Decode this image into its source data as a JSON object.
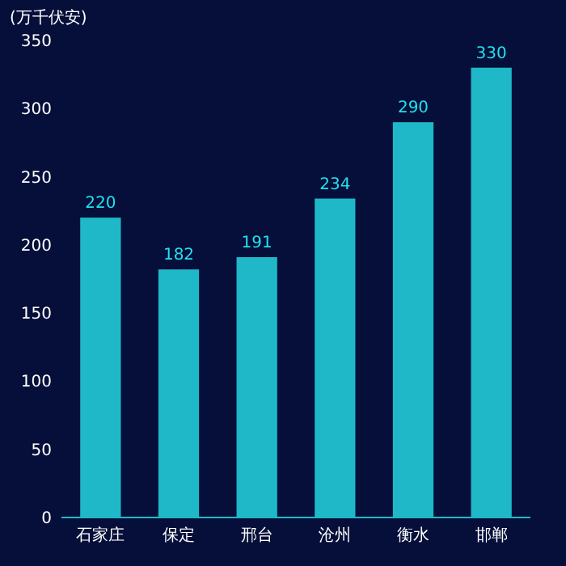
{
  "chart_data": {
    "type": "bar",
    "ylabel": "(万千伏安)",
    "categories": [
      "石家庄",
      "保定",
      "邢台",
      "沧州",
      "衡水",
      "邯郸"
    ],
    "values": [
      220,
      182,
      191,
      234,
      290,
      330
    ],
    "color": "#1fb8c8",
    "ylim": [
      0,
      350
    ],
    "yticks": [
      0,
      50,
      100,
      150,
      200,
      250,
      300,
      350
    ],
    "grid": false,
    "data_labels": true
  }
}
